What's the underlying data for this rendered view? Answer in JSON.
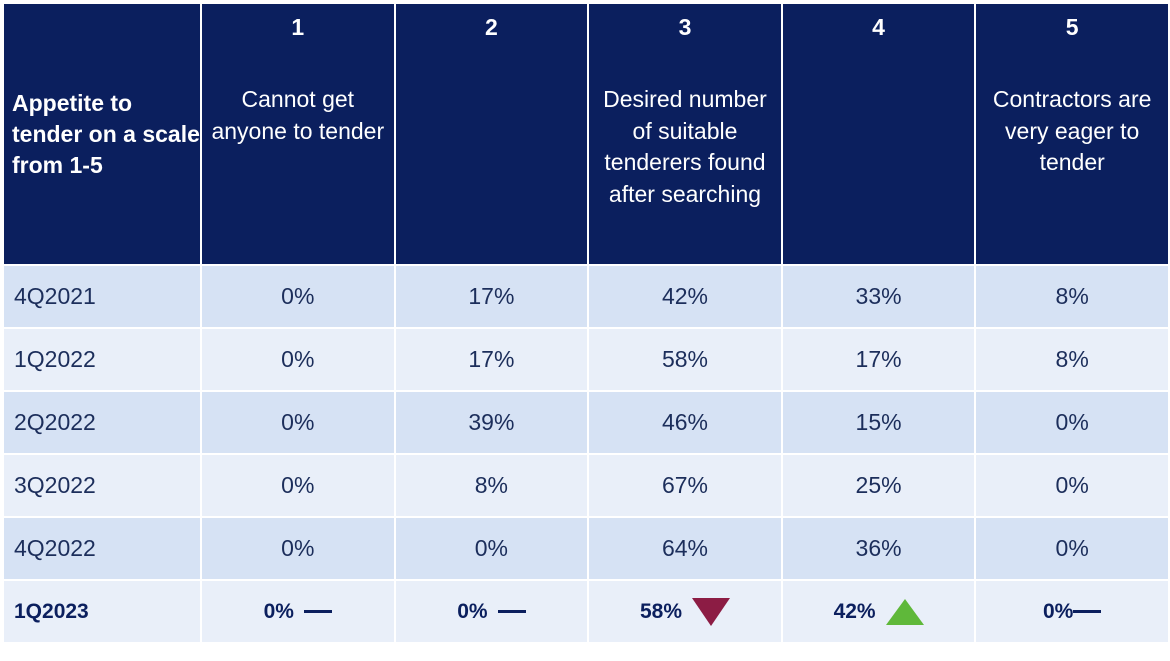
{
  "chart_data": {
    "type": "table",
    "header": {
      "corner_label": "Appetite to tender on a scale from 1-5",
      "columns": [
        {
          "number": "1",
          "description": "Cannot get anyone to tender"
        },
        {
          "number": "2",
          "description": ""
        },
        {
          "number": "3",
          "description": "Desired number of suitable tenderers found after searching"
        },
        {
          "number": "4",
          "description": ""
        },
        {
          "number": "5",
          "description": "Contractors are very eager to tender"
        }
      ]
    },
    "rows": [
      {
        "label": "4Q2021",
        "values": [
          "0%",
          "17%",
          "42%",
          "33%",
          "8%"
        ]
      },
      {
        "label": "1Q2022",
        "values": [
          "0%",
          "17%",
          "58%",
          "17%",
          "8%"
        ]
      },
      {
        "label": "2Q2022",
        "values": [
          "0%",
          "39%",
          "46%",
          "15%",
          "0%"
        ]
      },
      {
        "label": "3Q2022",
        "values": [
          "0%",
          "8%",
          "67%",
          "25%",
          "0%"
        ]
      },
      {
        "label": "4Q2022",
        "values": [
          "0%",
          "0%",
          "64%",
          "36%",
          "0%"
        ]
      },
      {
        "label": "1Q2023",
        "values": [
          "0%",
          "0%",
          "58%",
          "42%",
          "0%"
        ],
        "trend": [
          "flat",
          "flat",
          "down",
          "up",
          "flat"
        ]
      }
    ],
    "trend_colors": {
      "down": "#8c1c44",
      "up": "#5fb83a",
      "flat": "#0b1f5e"
    },
    "colors": {
      "header_bg": "#0b1f5e",
      "row_dark": "#d6e2f4",
      "row_light": "#e9eff9"
    }
  }
}
